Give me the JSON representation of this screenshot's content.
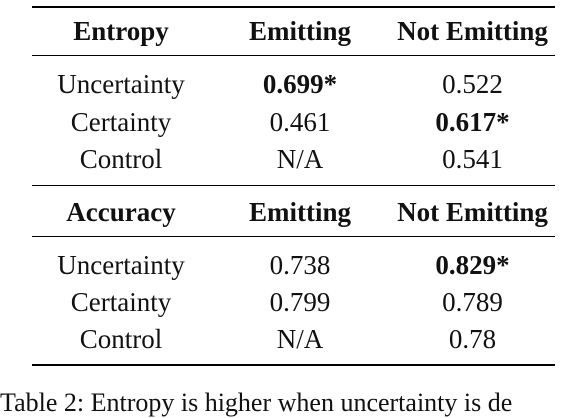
{
  "table": {
    "sections": [
      {
        "header": [
          "Entropy",
          "Emitting",
          "Not Emitting"
        ],
        "rows": [
          {
            "label": "Uncertainty",
            "emitting": "0.699*",
            "not_emitting": "0.522"
          },
          {
            "label": "Certainty",
            "emitting": "0.461",
            "not_emitting": "0.617*"
          },
          {
            "label": "Control",
            "emitting": "N/A",
            "not_emitting": "0.541"
          }
        ]
      },
      {
        "header": [
          "Accuracy",
          "Emitting",
          "Not Emitting"
        ],
        "rows": [
          {
            "label": "Uncertainty",
            "emitting": "0.738",
            "not_emitting": "0.829*"
          },
          {
            "label": "Certainty",
            "emitting": "0.799",
            "not_emitting": "0.789"
          },
          {
            "label": "Control",
            "emitting": "N/A",
            "not_emitting": "0.78"
          }
        ]
      }
    ]
  },
  "caption": "Table 2:   Entropy is higher when uncertainty is de"
}
